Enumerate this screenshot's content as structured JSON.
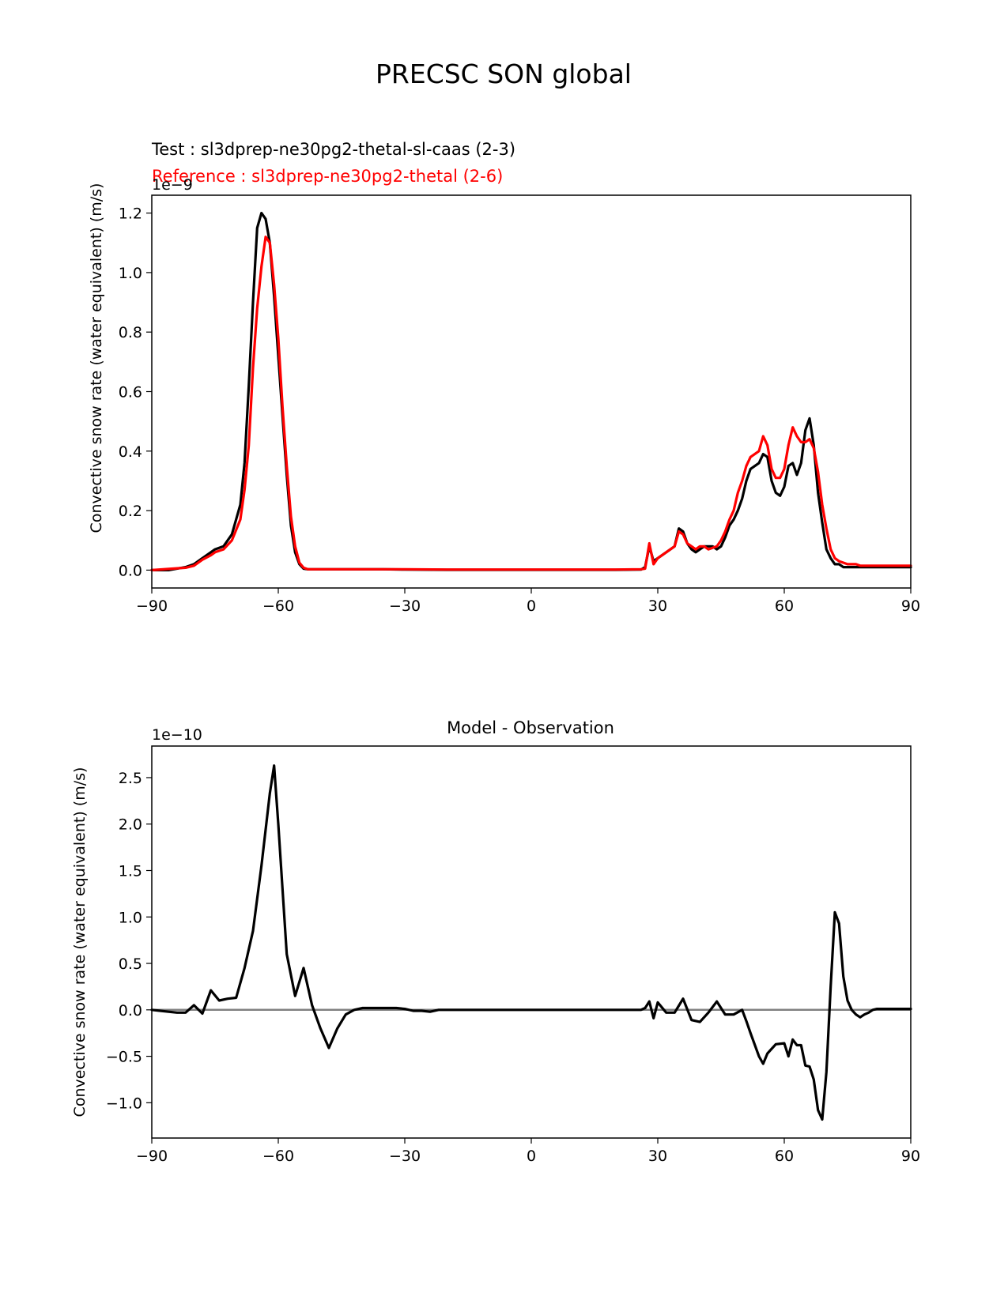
{
  "figure_title": "PRECSC SON global",
  "chart_data": [
    {
      "type": "line",
      "test_label": "Test : sl3dprep-ne30pg2-thetal-sl-caas (2-3)",
      "reference_label": "Reference : sl3dprep-ne30pg2-thetal (2-6)",
      "ylabel": "Convective snow rate (water equivalent) (m/s)",
      "offset_text": "1e−9",
      "xlim": [
        -90,
        90
      ],
      "ylim": [
        -0.06,
        1.26
      ],
      "xticks": [
        -90,
        -60,
        -30,
        0,
        30,
        60,
        90
      ],
      "xtick_labels": [
        "−90",
        "−60",
        "−30",
        "0",
        "30",
        "60",
        "90"
      ],
      "yticks": [
        0.0,
        0.2,
        0.4,
        0.6,
        0.8,
        1.0,
        1.2
      ],
      "ytick_labels": [
        "0.0",
        "0.2",
        "0.4",
        "0.6",
        "0.8",
        "1.0",
        "1.2"
      ],
      "grid": false,
      "series": [
        {
          "color": "#000000",
          "x": [
            -90,
            -86,
            -82,
            -80,
            -78,
            -76,
            -75,
            -73,
            -71,
            -69,
            -68,
            -67,
            -66,
            -65,
            -64,
            -63,
            -62,
            -61,
            -60,
            -59,
            -58,
            -57,
            -56,
            -55,
            -54,
            -53,
            -52,
            -51,
            -50,
            -49,
            -48,
            -47,
            -46,
            -45,
            -40,
            -35,
            -30,
            -20,
            0,
            20,
            26,
            27,
            28,
            29,
            30,
            32,
            34,
            35,
            36,
            37,
            38,
            39,
            40,
            41,
            42,
            43,
            44,
            45,
            46,
            47,
            48,
            49,
            50,
            51,
            52,
            54,
            55,
            56,
            57,
            58,
            59,
            60,
            61,
            62,
            63,
            64,
            65,
            66,
            67,
            68,
            69,
            70,
            71,
            72,
            73,
            74,
            75,
            76,
            77,
            78,
            79,
            80,
            81,
            82,
            83,
            84,
            86,
            88,
            90
          ],
          "y": [
            0.0,
            0.0,
            0.01,
            0.02,
            0.04,
            0.06,
            0.07,
            0.08,
            0.12,
            0.22,
            0.36,
            0.62,
            0.9,
            1.15,
            1.2,
            1.18,
            1.1,
            0.92,
            0.72,
            0.52,
            0.32,
            0.15,
            0.06,
            0.02,
            0.005,
            0.003,
            0.003,
            0.003,
            0.003,
            0.003,
            0.003,
            0.003,
            0.003,
            0.003,
            0.003,
            0.003,
            0.002,
            0.001,
            0.001,
            0.001,
            0.002,
            0.01,
            0.08,
            0.03,
            0.04,
            0.06,
            0.08,
            0.14,
            0.13,
            0.09,
            0.07,
            0.06,
            0.07,
            0.08,
            0.08,
            0.08,
            0.07,
            0.08,
            0.11,
            0.15,
            0.17,
            0.2,
            0.24,
            0.3,
            0.34,
            0.36,
            0.39,
            0.38,
            0.3,
            0.26,
            0.25,
            0.28,
            0.35,
            0.36,
            0.32,
            0.36,
            0.47,
            0.51,
            0.42,
            0.26,
            0.16,
            0.07,
            0.04,
            0.02,
            0.02,
            0.01,
            0.01,
            0.01,
            0.01,
            0.01,
            0.01,
            0.01,
            0.01,
            0.01,
            0.01,
            0.01,
            0.01,
            0.01,
            0.01
          ]
        },
        {
          "color": "#ff0000",
          "x": [
            -90,
            -86,
            -82,
            -80,
            -78,
            -76,
            -75,
            -73,
            -71,
            -69,
            -68,
            -67,
            -66,
            -65,
            -64,
            -63,
            -62,
            -61,
            -60,
            -59,
            -58,
            -57,
            -56,
            -55,
            -54,
            -53,
            -52,
            -51,
            -50,
            -49,
            -48,
            -47,
            -46,
            -45,
            -40,
            -35,
            -30,
            -20,
            0,
            20,
            26,
            27,
            28,
            29,
            30,
            32,
            34,
            35,
            36,
            37,
            38,
            39,
            40,
            41,
            42,
            43,
            44,
            45,
            46,
            47,
            48,
            49,
            50,
            51,
            52,
            54,
            55,
            56,
            57,
            58,
            59,
            60,
            61,
            62,
            63,
            64,
            65,
            66,
            67,
            68,
            69,
            70,
            71,
            72,
            73,
            74,
            75,
            76,
            77,
            78,
            79,
            80,
            81,
            82,
            83,
            84,
            86,
            88,
            90
          ],
          "y": [
            0.0,
            0.004,
            0.008,
            0.015,
            0.035,
            0.05,
            0.06,
            0.07,
            0.1,
            0.17,
            0.27,
            0.42,
            0.68,
            0.88,
            1.02,
            1.12,
            1.1,
            0.96,
            0.78,
            0.55,
            0.35,
            0.18,
            0.08,
            0.025,
            0.008,
            0.003,
            0.003,
            0.003,
            0.003,
            0.003,
            0.003,
            0.003,
            0.003,
            0.003,
            0.003,
            0.003,
            0.003,
            0.002,
            0.002,
            0.002,
            0.003,
            0.005,
            0.09,
            0.02,
            0.04,
            0.06,
            0.08,
            0.13,
            0.12,
            0.09,
            0.08,
            0.07,
            0.08,
            0.08,
            0.07,
            0.075,
            0.08,
            0.1,
            0.13,
            0.17,
            0.2,
            0.26,
            0.3,
            0.35,
            0.38,
            0.4,
            0.45,
            0.42,
            0.34,
            0.31,
            0.31,
            0.34,
            0.42,
            0.48,
            0.45,
            0.43,
            0.43,
            0.44,
            0.41,
            0.33,
            0.22,
            0.14,
            0.07,
            0.04,
            0.03,
            0.025,
            0.02,
            0.02,
            0.02,
            0.015,
            0.015,
            0.015,
            0.015,
            0.015,
            0.015,
            0.015,
            0.015,
            0.015,
            0.015
          ]
        }
      ]
    },
    {
      "type": "line",
      "title": "Model - Observation",
      "ylabel": "Convective snow rate (water equivalent) (m/s)",
      "offset_text": "1e−10",
      "xlim": [
        -90,
        90
      ],
      "ylim": [
        -1.38,
        2.84
      ],
      "xticks": [
        -90,
        -60,
        -30,
        0,
        30,
        60,
        90
      ],
      "xtick_labels": [
        "−90",
        "−60",
        "−30",
        "0",
        "30",
        "60",
        "90"
      ],
      "yticks": [
        -1.0,
        -0.5,
        0.0,
        0.5,
        1.0,
        1.5,
        2.0,
        2.5
      ],
      "ytick_labels": [
        "−1.0",
        "−0.5",
        "0.0",
        "0.5",
        "1.0",
        "1.5",
        "2.0",
        "2.5"
      ],
      "grid": false,
      "zero_line": {
        "color": "#808080"
      },
      "series": [
        {
          "color": "#000000",
          "x": [
            -90,
            -88,
            -86,
            -84,
            -82,
            -80,
            -78,
            -76,
            -74,
            -72,
            -70,
            -68,
            -66,
            -64,
            -62,
            -61,
            -60,
            -58,
            -56,
            -54,
            -52,
            -50,
            -48,
            -46,
            -44,
            -42,
            -40,
            -38,
            -36,
            -34,
            -32,
            -30,
            -28,
            -26,
            -24,
            -22,
            -20,
            0,
            20,
            24,
            26,
            27,
            28,
            29,
            30,
            32,
            34,
            36,
            38,
            40,
            42,
            44,
            46,
            48,
            50,
            51,
            52,
            54,
            55,
            56,
            58,
            60,
            61,
            62,
            63,
            64,
            65,
            66,
            67,
            68,
            69,
            70,
            71,
            72,
            73,
            74,
            75,
            76,
            77,
            78,
            79,
            80,
            81,
            82,
            84,
            86,
            88,
            90
          ],
          "y": [
            0.0,
            -0.01,
            -0.02,
            -0.03,
            -0.03,
            0.05,
            -0.04,
            0.21,
            0.1,
            0.12,
            0.13,
            0.45,
            0.85,
            1.55,
            2.33,
            2.63,
            2.0,
            0.6,
            0.15,
            0.45,
            0.05,
            -0.2,
            -0.41,
            -0.2,
            -0.05,
            0.0,
            0.02,
            0.02,
            0.02,
            0.02,
            0.02,
            0.01,
            -0.01,
            -0.01,
            -0.02,
            0.0,
            0.0,
            0.0,
            0.0,
            0.0,
            0.0,
            0.02,
            0.09,
            -0.09,
            0.08,
            -0.03,
            -0.03,
            0.12,
            -0.11,
            -0.13,
            -0.03,
            0.09,
            -0.05,
            -0.05,
            0.0,
            -0.12,
            -0.25,
            -0.5,
            -0.58,
            -0.47,
            -0.37,
            -0.36,
            -0.5,
            -0.32,
            -0.38,
            -0.38,
            -0.6,
            -0.61,
            -0.75,
            -1.08,
            -1.18,
            -0.67,
            0.25,
            1.05,
            0.93,
            0.36,
            0.1,
            0.0,
            -0.05,
            -0.08,
            -0.05,
            -0.03,
            0.0,
            0.01,
            0.01,
            0.01,
            0.01,
            0.01
          ]
        }
      ]
    }
  ]
}
